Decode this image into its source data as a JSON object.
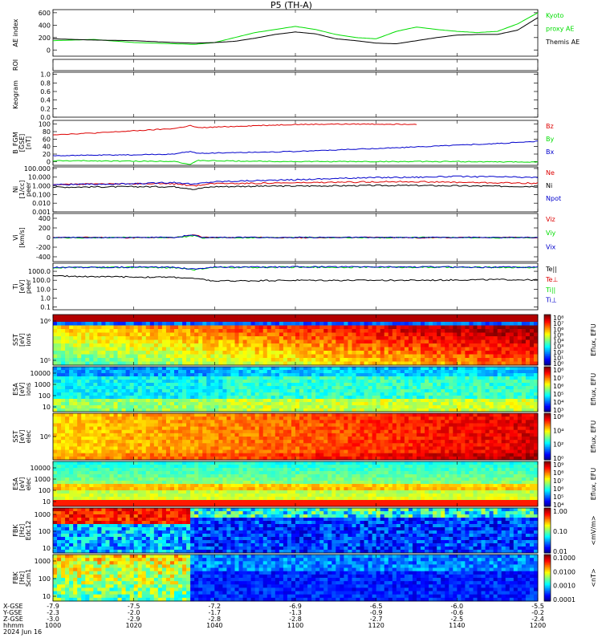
{
  "title": "P5 (TH-A)",
  "colors": {
    "red": "#dd0000",
    "green": "#00dd00",
    "blue": "#0000cc",
    "black": "#000000"
  },
  "panels": [
    {
      "id": "ae",
      "ylabel": [
        "AE index"
      ],
      "ylim": [
        -100,
        650
      ],
      "ticks": [
        "600",
        "400",
        "200",
        "0"
      ],
      "tickvals": [
        600,
        400,
        200,
        0
      ],
      "legend": [
        {
          "text": "Kyoto",
          "color": "green"
        },
        {
          "text": "proxy AE",
          "color": "green"
        },
        {
          "text": "Themis AE",
          "color": "black"
        }
      ]
    },
    {
      "id": "roi",
      "ylabel": [
        "ROI"
      ],
      "ylim": [
        0,
        1
      ],
      "ticks": [],
      "tickvals": [],
      "legend": []
    },
    {
      "id": "keogram",
      "ylabel": [
        "Keogram"
      ],
      "ylim": [
        0,
        1.05
      ],
      "ticks": [
        "1.0",
        "0.8",
        "0.6",
        "0.4",
        "0.2",
        "0.0"
      ],
      "tickvals": [
        1.0,
        0.8,
        0.6,
        0.4,
        0.2,
        0.0
      ],
      "legend": []
    },
    {
      "id": "bfgm",
      "ylabel": [
        "B_FGM",
        "[GSE]",
        "[nT]"
      ],
      "ylim": [
        -10,
        110
      ],
      "ticks": [
        "100",
        "80",
        "60",
        "40",
        "20",
        "0"
      ],
      "tickvals": [
        100,
        80,
        60,
        40,
        20,
        0
      ],
      "legend": [
        {
          "text": "Bz",
          "color": "red"
        },
        {
          "text": "By",
          "color": "green"
        },
        {
          "text": "Bx",
          "color": "blue"
        }
      ]
    },
    {
      "id": "ni",
      "ylabel": [
        "Ni",
        "[1/cc]",
        "peer"
      ],
      "ylim": [
        0.001,
        150
      ],
      "log": true,
      "ticks": [
        "100.000",
        "10.000",
        "1.000",
        "0.100",
        "0.010",
        "0.001"
      ],
      "tickvals": [
        100,
        10,
        1,
        0.1,
        0.01,
        0.001
      ],
      "legend": [
        {
          "text": "Ne",
          "color": "red"
        },
        {
          "text": "Ni",
          "color": "black"
        },
        {
          "text": "Npot",
          "color": "blue"
        }
      ]
    },
    {
      "id": "vi",
      "ylabel": [
        "Vi",
        "[km/s]"
      ],
      "ylim": [
        -500,
        500
      ],
      "ticks": [
        "400",
        "200",
        "0",
        "-200",
        "-400"
      ],
      "tickvals": [
        400,
        200,
        0,
        -200,
        -400
      ],
      "legend": [
        {
          "text": "Viz",
          "color": "red"
        },
        {
          "text": "Viy",
          "color": "green"
        },
        {
          "text": "Vix",
          "color": "blue"
        }
      ]
    },
    {
      "id": "ti",
      "ylabel": [
        "Ti",
        "[eV]",
        "peer"
      ],
      "ylim": [
        0.05,
        8000
      ],
      "log": true,
      "ticks": [
        "1000.0",
        "100.0",
        "10.0",
        "1.0",
        "0.1"
      ],
      "tickvals": [
        1000,
        100,
        10,
        1,
        0.1
      ],
      "legend": [
        {
          "text": "Te||",
          "color": "black"
        },
        {
          "text": "Te⊥",
          "color": "red"
        },
        {
          "text": "Ti||",
          "color": "green"
        },
        {
          "text": "Ti⊥",
          "color": "blue"
        }
      ]
    },
    {
      "id": "ssti",
      "ylabel": [
        "SST",
        "[eV]",
        "ions"
      ],
      "ticks": [
        "10⁶",
        "10⁵"
      ],
      "cbar": [
        "10⁸",
        "10⁷",
        "10⁶",
        "10⁵",
        "10⁴",
        "10³",
        "10²",
        "10¹",
        "10⁰"
      ],
      "cbarlabel": "Eflux, EFU"
    },
    {
      "id": "esai",
      "ylabel": [
        "ESA",
        "[eV]",
        "ions"
      ],
      "ticks": [
        "10000",
        "1000",
        "100",
        "10"
      ],
      "cbar": [
        "10⁸",
        "10⁷",
        "10⁶",
        "10⁵",
        "10⁴",
        "10³"
      ],
      "cbarlabel": "Eflux, EFU"
    },
    {
      "id": "sste",
      "ylabel": [
        "SST",
        "[eV]",
        "elec"
      ],
      "ticks": [
        "10⁶"
      ],
      "cbar": [
        "10⁶",
        "10⁴",
        "10²",
        "10⁰"
      ],
      "cbarlabel": "Eflux, EFU"
    },
    {
      "id": "esae",
      "ylabel": [
        "ESA",
        "[eV]",
        "elec"
      ],
      "ticks": [
        "10000",
        "1000",
        "100",
        "10"
      ],
      "cbar": [
        "10⁹",
        "10⁸",
        "10⁷",
        "10⁶",
        "10⁵",
        "10⁴"
      ],
      "cbarlabel": "Eflux, EFU"
    },
    {
      "id": "fbke",
      "ylabel": [
        "FBK",
        "[Hz]",
        "Edc12"
      ],
      "ticks": [
        "1000",
        "100",
        "10"
      ],
      "cbar": [
        "1.00",
        "0.10",
        "0.01"
      ],
      "cbarlabel": "<mV/m>"
    },
    {
      "id": "fbkb",
      "ylabel": [
        "FBK",
        "[Hz]",
        "Scm1"
      ],
      "ticks": [
        "1000",
        "100",
        "10"
      ],
      "cbar": [
        "0.1000",
        "0.0100",
        "0.0010",
        "0.0001"
      ],
      "cbarlabel": "<nT>"
    }
  ],
  "xaxis": {
    "rows": [
      {
        "label": "X-GSE",
        "values": [
          "-7.9",
          "-7.5",
          "-7.2",
          "-6.9",
          "-6.5",
          "-6.0",
          "-5.5"
        ]
      },
      {
        "label": "Y-GSE",
        "values": [
          "-2.3",
          "-2.0",
          "-1.7",
          "-1.3",
          "-0.9",
          "-0.6",
          "-0.2"
        ]
      },
      {
        "label": "Z-GSE",
        "values": [
          "-3.0",
          "-2.9",
          "-2.8",
          "-2.8",
          "-2.7",
          "-2.5",
          "-2.4"
        ]
      },
      {
        "label": "hhmm",
        "values": [
          "1000",
          "1020",
          "1040",
          "1100",
          "1120",
          "1140",
          "1200"
        ]
      }
    ],
    "date": "2024 Jun 16",
    "range": [
      1000,
      1200
    ]
  },
  "chart_data": [
    {
      "type": "line",
      "panel": "ae",
      "x_minutes": [
        0,
        10,
        20,
        30,
        35,
        40,
        45,
        50,
        55,
        60,
        65,
        70,
        75,
        80,
        85,
        90,
        95,
        100,
        105,
        110,
        115,
        120
      ],
      "series": [
        {
          "name": "Kyoto proxy AE",
          "color": "green",
          "values": [
            150,
            170,
            120,
            100,
            90,
            120,
            200,
            280,
            330,
            380,
            330,
            250,
            200,
            180,
            300,
            370,
            330,
            300,
            280,
            300,
            420,
            600
          ]
        },
        {
          "name": "Themis AE",
          "color": "black",
          "values": [
            180,
            160,
            150,
            120,
            110,
            120,
            140,
            190,
            250,
            290,
            260,
            180,
            150,
            110,
            100,
            150,
            200,
            240,
            250,
            250,
            320,
            520
          ]
        }
      ]
    },
    {
      "type": "line",
      "panel": "bfgm",
      "x_minutes": [
        0,
        10,
        20,
        30,
        34,
        36,
        40,
        50,
        60,
        70,
        80,
        90,
        100,
        110,
        120
      ],
      "series": [
        {
          "name": "Bz",
          "color": "red",
          "values": [
            72,
            76,
            82,
            88,
            96,
            90,
            92,
            96,
            99,
            100,
            100,
            100,
            null,
            null,
            null
          ]
        },
        {
          "name": "By",
          "color": "green",
          "values": [
            2,
            2,
            1,
            1,
            -8,
            3,
            2,
            1,
            0,
            0,
            0,
            0,
            0,
            -1,
            -1
          ]
        },
        {
          "name": "Bx",
          "color": "blue",
          "values": [
            16,
            17,
            18,
            20,
            27,
            22,
            23,
            25,
            27,
            31,
            35,
            39,
            44,
            48,
            54
          ]
        }
      ]
    },
    {
      "type": "line",
      "panel": "ni",
      "x_minutes": [
        0,
        10,
        20,
        30,
        35,
        40,
        50,
        60,
        70,
        80,
        90,
        100,
        110,
        120
      ],
      "series": [
        {
          "name": "Ne",
          "color": "red",
          "values": [
            1.5,
            1.6,
            1.8,
            1.7,
            1.0,
            1.9,
            2.0,
            2.2,
            2.5,
            3.0,
            3.0,
            2.5,
            2.2,
            2.0
          ]
        },
        {
          "name": "Ni",
          "color": "black",
          "values": [
            0.7,
            0.75,
            0.8,
            0.8,
            0.4,
            0.8,
            0.9,
            0.95,
            1.0,
            1.1,
            1.1,
            1.0,
            0.9,
            0.85
          ]
        },
        {
          "name": "Npot",
          "color": "blue",
          "values": [
            1.4,
            1.5,
            1.7,
            2.5,
            1.5,
            3.0,
            4.0,
            5.0,
            7.0,
            9.0,
            10,
            12,
            11,
            9
          ]
        }
      ]
    },
    {
      "type": "line",
      "panel": "vi",
      "x_minutes": [
        0,
        10,
        20,
        30,
        33,
        35,
        37,
        40,
        50,
        60,
        70,
        80,
        90,
        100,
        110,
        120
      ],
      "series": [
        {
          "name": "Viz",
          "color": "red",
          "values": [
            0,
            5,
            -5,
            0,
            30,
            60,
            10,
            0,
            5,
            -5,
            0,
            5,
            -5,
            0,
            5,
            0
          ]
        },
        {
          "name": "Viy",
          "color": "green",
          "values": [
            0,
            -5,
            5,
            0,
            20,
            40,
            -10,
            0,
            -5,
            5,
            0,
            -5,
            5,
            0,
            -5,
            0
          ]
        },
        {
          "name": "Vix",
          "color": "blue",
          "values": [
            0,
            0,
            5,
            0,
            40,
            50,
            0,
            5,
            0,
            0,
            5,
            0,
            0,
            5,
            0,
            0
          ]
        }
      ]
    },
    {
      "type": "line",
      "panel": "ti",
      "x_minutes": [
        0,
        10,
        20,
        30,
        35,
        40,
        50,
        60,
        70,
        80,
        90,
        100,
        110,
        120
      ],
      "series": [
        {
          "name": "Te||",
          "color": "black",
          "values": [
            300,
            260,
            230,
            220,
            150,
            80,
            90,
            100,
            100,
            100,
            100,
            110,
            120,
            110
          ]
        },
        {
          "name": "Ti||",
          "color": "green",
          "values": [
            2500,
            2700,
            2800,
            2600,
            1500,
            2700,
            2800,
            2900,
            2900,
            2900,
            2900,
            2800,
            2800,
            2700
          ]
        },
        {
          "name": "Ti⊥",
          "color": "blue",
          "values": [
            2700,
            2900,
            3000,
            2800,
            1800,
            3000,
            3000,
            3100,
            3100,
            3100,
            3100,
            3000,
            3000,
            2900
          ]
        }
      ]
    }
  ]
}
